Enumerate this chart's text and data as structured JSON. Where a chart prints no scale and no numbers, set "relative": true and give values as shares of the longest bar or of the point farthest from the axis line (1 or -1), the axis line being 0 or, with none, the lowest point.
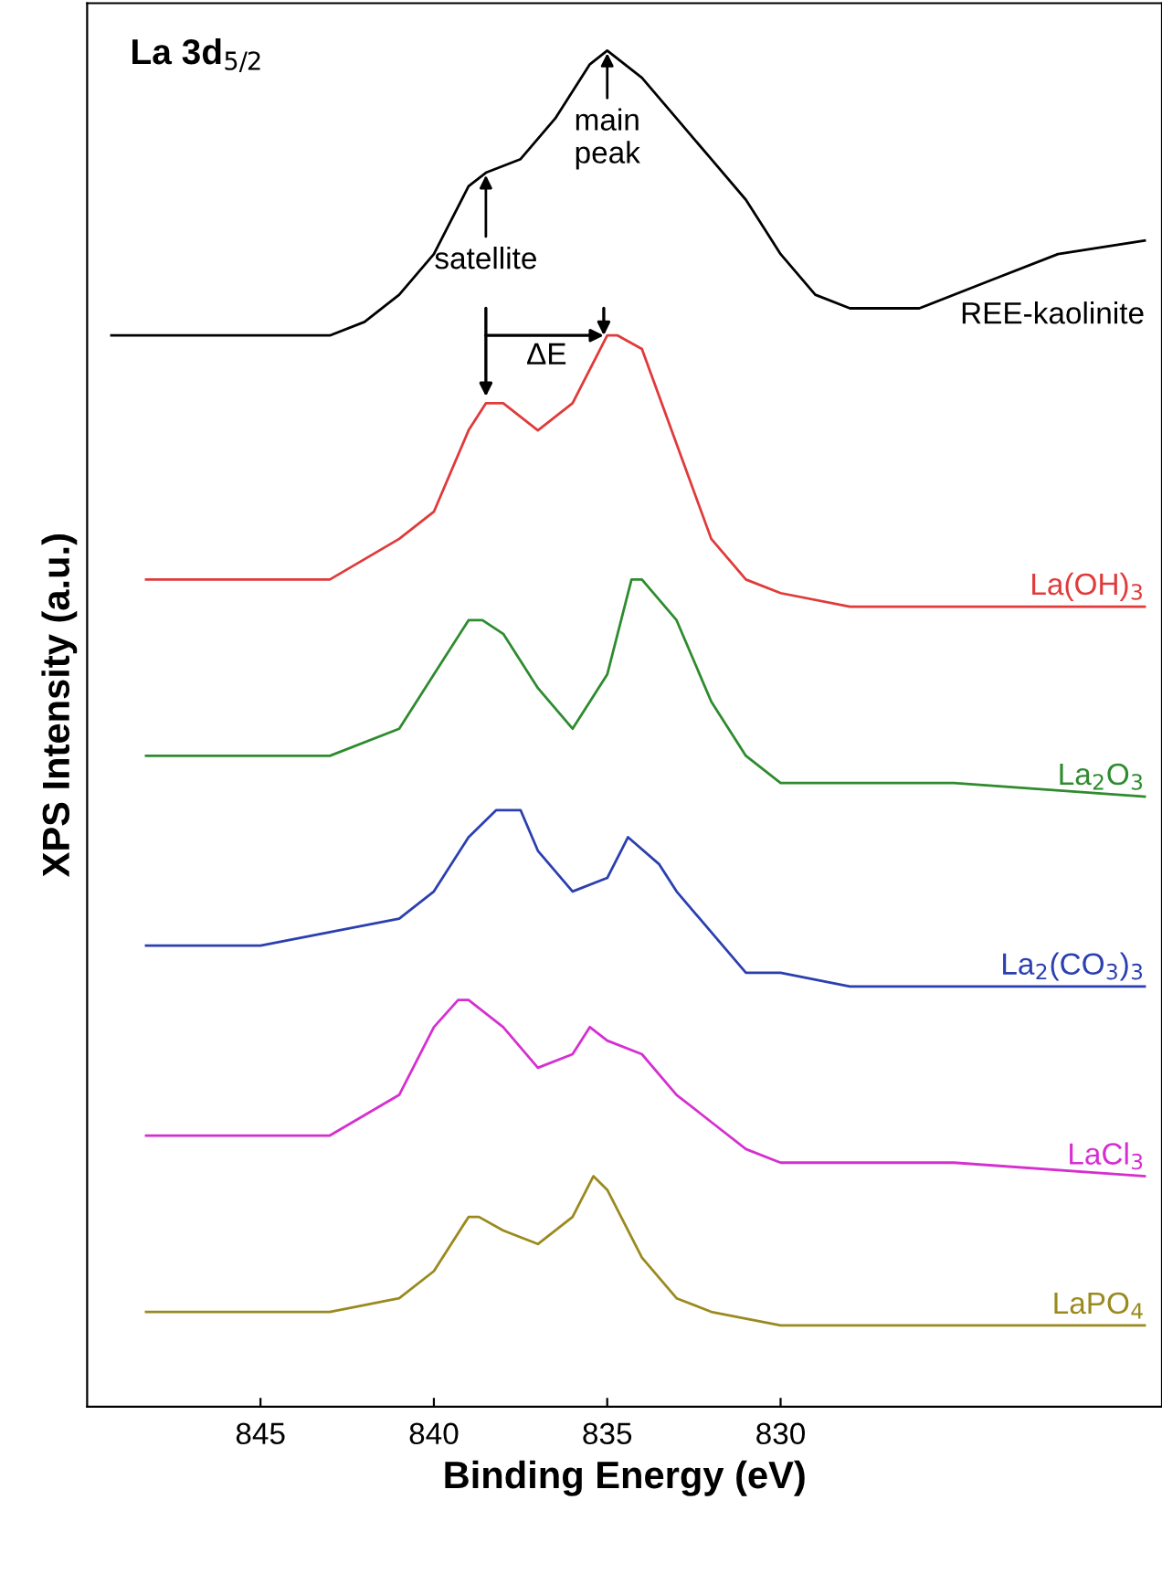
{
  "chart_data": {
    "type": "line",
    "relative": true,
    "xlabel": "Binding Energy (eV)",
    "ylabel": "XPS Intensity (a.u.)",
    "xlim": [
      850,
      819
    ],
    "xticks": [
      845,
      840,
      835,
      830
    ],
    "tick_labels": "x",
    "grid": false,
    "marker": "none",
    "line_style": "solid",
    "annotations": [
      "La 3d$_{5/2}$",
      {
        "text": "satellite",
        "x": 838.5,
        "y": 0.91
      },
      {
        "text": "main\npeak",
        "x": 835,
        "y": 1.0
      },
      "ΔE"
    ],
    "series": [
      {
        "name": "REE-kaolinite",
        "color": "#000000",
        "x": [
          849.3,
          847,
          845,
          843,
          842,
          841,
          840,
          839,
          838.5,
          837.5,
          836.5,
          835.5,
          835,
          834,
          833,
          832,
          831,
          830,
          829,
          828,
          826,
          824,
          822,
          819.5
        ],
        "values": [
          0.79,
          0.79,
          0.79,
          0.79,
          0.8,
          0.82,
          0.85,
          0.9,
          0.91,
          0.92,
          0.95,
          0.99,
          1.0,
          0.98,
          0.95,
          0.92,
          0.89,
          0.85,
          0.82,
          0.81,
          0.81,
          0.83,
          0.85,
          0.86
        ]
      },
      {
        "name": "La(OH)$_{3}$",
        "color": "#e03a3a",
        "x": [
          848.3,
          845,
          843,
          841,
          840,
          839,
          838.5,
          838,
          837,
          836,
          835,
          834.7,
          834,
          833,
          832,
          831,
          830,
          828,
          825,
          819.5
        ],
        "values": [
          0.61,
          0.61,
          0.61,
          0.64,
          0.66,
          0.72,
          0.74,
          0.74,
          0.72,
          0.74,
          0.79,
          0.79,
          0.78,
          0.71,
          0.64,
          0.61,
          0.6,
          0.59,
          0.59,
          0.59
        ]
      },
      {
        "name": "La$_{2}$O$_{3}$",
        "color": "#2e8b2e",
        "x": [
          848.3,
          845,
          843,
          841,
          840,
          839,
          838.6,
          838,
          837,
          836,
          835,
          834.3,
          834,
          833,
          832,
          831,
          830,
          828,
          825,
          819.5
        ],
        "values": [
          0.48,
          0.48,
          0.48,
          0.5,
          0.54,
          0.58,
          0.58,
          0.57,
          0.53,
          0.5,
          0.54,
          0.61,
          0.61,
          0.58,
          0.52,
          0.48,
          0.46,
          0.46,
          0.46,
          0.45
        ]
      },
      {
        "name": "La$_{2}$(CO$_{3}$)$_{3}$",
        "color": "#2b3fb0",
        "x": [
          848.3,
          845,
          843,
          841,
          840,
          839,
          838.2,
          837.5,
          837,
          836,
          835,
          834.4,
          833.5,
          833,
          832,
          831,
          830,
          828,
          825,
          819.5
        ],
        "values": [
          0.34,
          0.34,
          0.35,
          0.36,
          0.38,
          0.42,
          0.44,
          0.44,
          0.41,
          0.38,
          0.39,
          0.42,
          0.4,
          0.38,
          0.35,
          0.32,
          0.32,
          0.31,
          0.31,
          0.31
        ]
      },
      {
        "name": "LaCl$_{3}$",
        "color": "#d62fd0",
        "x": [
          848.3,
          845,
          843,
          841,
          840,
          839.3,
          839,
          838,
          837,
          836,
          835.5,
          835,
          834,
          833,
          832,
          831,
          830,
          828,
          825,
          819.5
        ],
        "values": [
          0.2,
          0.2,
          0.2,
          0.23,
          0.28,
          0.3,
          0.3,
          0.28,
          0.25,
          0.26,
          0.28,
          0.27,
          0.26,
          0.23,
          0.21,
          0.19,
          0.18,
          0.18,
          0.18,
          0.17
        ]
      },
      {
        "name": "LaPO$_{4}$",
        "color": "#9a8a1e",
        "x": [
          848.3,
          845,
          843,
          841,
          840,
          839,
          838.7,
          838,
          837,
          836,
          835.4,
          835,
          834,
          833,
          832,
          830,
          825,
          819.5
        ],
        "values": [
          0.07,
          0.07,
          0.07,
          0.08,
          0.1,
          0.14,
          0.14,
          0.13,
          0.12,
          0.14,
          0.17,
          0.16,
          0.11,
          0.08,
          0.07,
          0.06,
          0.06,
          0.06
        ]
      }
    ]
  }
}
